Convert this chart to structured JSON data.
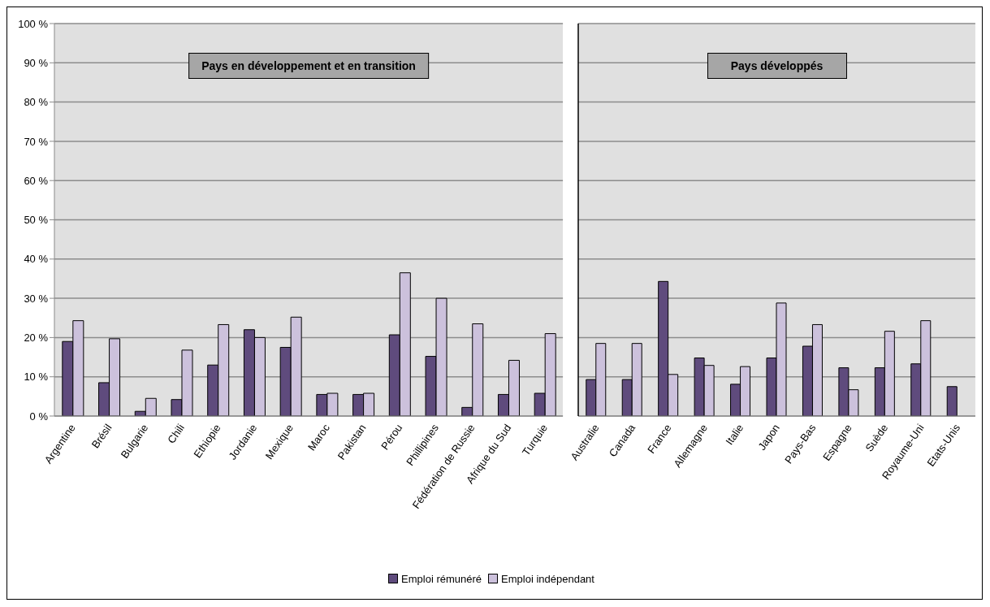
{
  "chart_data": [
    {
      "type": "bar",
      "title": "Pays en développement et en transition",
      "categories": [
        "Argentine",
        "Brésil",
        "Bulgarie",
        "Chili",
        "Ethiopie",
        "Jordanie",
        "Mexique",
        "Maroc",
        "Pakistan",
        "Pérou",
        "Phillipines",
        "Fédération de Russie",
        "Afrique du Sud",
        "Turquie"
      ],
      "series": [
        {
          "name": "Emploi rémunéré",
          "color": "#5f4b7d",
          "values": [
            19,
            8.5,
            1.2,
            4.2,
            13,
            22,
            17.5,
            5.5,
            5.5,
            20.7,
            15.2,
            2.2,
            5.5,
            5.8
          ]
        },
        {
          "name": "Emploi indépendant",
          "color": "#ccc1dc",
          "values": [
            24.3,
            19.7,
            4.5,
            16.8,
            23.3,
            20,
            25.2,
            5.8,
            5.8,
            36.5,
            30,
            23.5,
            14.2,
            21
          ]
        }
      ],
      "ylim": [
        0,
        100
      ],
      "yticks": [
        {
          "value": 0,
          "label": "0 %"
        },
        {
          "value": 10,
          "label": "10 %"
        },
        {
          "value": 20,
          "label": "20 %"
        },
        {
          "value": 30,
          "label": "30 %"
        },
        {
          "value": 40,
          "label": "40 %"
        },
        {
          "value": 50,
          "label": "50 %"
        },
        {
          "value": 60,
          "label": "60 %"
        },
        {
          "value": 70,
          "label": "70 %"
        },
        {
          "value": 80,
          "label": "80 %"
        },
        {
          "value": 90,
          "label": "90 %"
        },
        {
          "value": 100,
          "label": "100 %"
        }
      ],
      "grid": "y",
      "legend": "bottom"
    },
    {
      "type": "bar",
      "title": "Pays développés",
      "categories": [
        "Australie",
        "Canada",
        "France",
        "Allemagne",
        "Italie",
        "Japon",
        "Pays-Bas",
        "Espagne",
        "Suède",
        "Royaume-Uni",
        "Etats-Unis"
      ],
      "series": [
        {
          "color": "#5f4b7d",
          "values": [
            9.3,
            9.3,
            34.3,
            14.8,
            8.1,
            14.8,
            17.8,
            12.3,
            12.3,
            13.3,
            7.5
          ]
        },
        {
          "color": "#ccc1dc",
          "values": [
            18.5,
            18.5,
            10.6,
            12.9,
            12.6,
            28.8,
            23.3,
            6.7,
            21.6,
            24.3,
            null
          ]
        }
      ],
      "ylim": [
        0,
        100
      ],
      "yticks": [
        0,
        10,
        20,
        30,
        40,
        50,
        60,
        70,
        80,
        90,
        100
      ],
      "grid": "y",
      "tick_labels": "x"
    }
  ]
}
